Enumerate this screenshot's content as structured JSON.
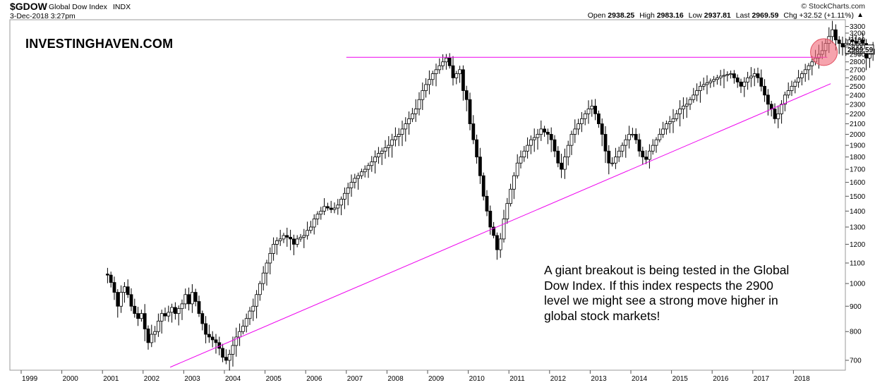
{
  "header": {
    "ticker": "$GDOW",
    "index_name": "Global Dow Index",
    "exchange": "INDX",
    "copyright": "© StockCharts.com",
    "date": "3-Dec-2018 3:27pm",
    "open_label": "Open",
    "open": "2938.25",
    "high_label": "High",
    "high": "2983.16",
    "low_label": "Low",
    "low": "2937.81",
    "last_label": "Last",
    "last": "2969.59",
    "chg_label": "Chg",
    "chg": "+32.52 (+1.11%)",
    "arrow_icon": "up-arrow-icon"
  },
  "watermark": "INVESTINGHAVEN.COM",
  "annotation": "A giant breakout is being tested in the Global Dow Index. If this index respects the 2900 level we might see a strong move higher in global stock markets!",
  "chart_data": {
    "type": "candlestick",
    "title": "Global Dow Index",
    "frequency": "monthly",
    "y_scale": "log",
    "ylim": [
      660,
      3400
    ],
    "xlim": [
      "1999",
      "2018"
    ],
    "x_tick_labels": [
      "1999",
      "2000",
      "2001",
      "2002",
      "2003",
      "2004",
      "2005",
      "2006",
      "2007",
      "2008",
      "2009",
      "2010",
      "2011",
      "2012",
      "2013",
      "2014",
      "2015",
      "2016",
      "2017",
      "2018"
    ],
    "y_tick_labels": [
      700,
      800,
      900,
      1000,
      1100,
      1200,
      1300,
      1400,
      1500,
      1600,
      1700,
      1800,
      1900,
      2000,
      2100,
      2200,
      2300,
      2400,
      2500,
      2600,
      2700,
      2800,
      2900,
      3000,
      3100,
      3200,
      3300
    ],
    "last_price_label": "2969.59",
    "grid": false,
    "colors": {
      "up": "#ffffff",
      "down": "#000000",
      "trendlines": "#ee00ee",
      "highlight": "#f06b7b"
    },
    "horizontal_line": {
      "y": 2860,
      "from": "2007",
      "to": "2018-11"
    },
    "trend_line": {
      "from": {
        "x": "2002-09",
        "y": 678
      },
      "to": {
        "x": "2018-12",
        "y": 2530
      }
    },
    "highlight_circle": {
      "x": "2018-10",
      "y": 2930
    },
    "monthly_closes": [
      1045,
      1040,
      1005,
      960,
      900,
      960,
      985,
      950,
      900,
      870,
      850,
      870,
      810,
      760,
      790,
      800,
      840,
      870,
      860,
      875,
      895,
      870,
      890,
      910,
      950,
      910,
      960,
      920,
      870,
      830,
      790,
      780,
      770,
      760,
      740,
      710,
      700,
      720,
      750,
      780,
      800,
      820,
      850,
      880,
      900,
      950,
      1000,
      1050,
      1100,
      1150,
      1200,
      1220,
      1230,
      1250,
      1240,
      1230,
      1200,
      1230,
      1240,
      1250,
      1280,
      1300,
      1350,
      1380,
      1400,
      1430,
      1420,
      1410,
      1420,
      1440,
      1480,
      1520,
      1560,
      1600,
      1630,
      1650,
      1680,
      1700,
      1730,
      1760,
      1800,
      1830,
      1850,
      1880,
      1900,
      1950,
      1980,
      2000,
      2050,
      2100,
      2150,
      2200,
      2250,
      2350,
      2450,
      2520,
      2580,
      2650,
      2700,
      2750,
      2800,
      2850,
      2750,
      2600,
      2650,
      2700,
      2450,
      2350,
      2100,
      1950,
      1800,
      1650,
      1500,
      1400,
      1300,
      1250,
      1170,
      1230,
      1350,
      1450,
      1550,
      1650,
      1750,
      1800,
      1850,
      1900,
      1950,
      1970,
      2000,
      2050,
      2020,
      2000,
      1950,
      1850,
      1750,
      1700,
      1800,
      1900,
      2000,
      2050,
      2100,
      2150,
      2200,
      2250,
      2280,
      2200,
      2100,
      2000,
      1850,
      1750,
      1750,
      1800,
      1850,
      1900,
      1950,
      2000,
      2000,
      1950,
      1850,
      1800,
      1780,
      1850,
      1900,
      1950,
      2000,
      2050,
      2100,
      2120,
      2150,
      2200,
      2250,
      2280,
      2300,
      2350,
      2400,
      2450,
      2500,
      2520,
      2540,
      2560,
      2580,
      2600,
      2620,
      2630,
      2640,
      2650,
      2600,
      2550,
      2500,
      2550,
      2600,
      2620,
      2650,
      2600,
      2500,
      2400,
      2300,
      2250,
      2150,
      2200,
      2300,
      2400,
      2450,
      2500,
      2550,
      2600,
      2650,
      2700,
      2750,
      2800,
      2850,
      2900,
      2950,
      3050,
      3150,
      3250,
      3100,
      3050,
      3000,
      3050,
      3100,
      3080,
      3050,
      3100,
      3050,
      2850,
      2900,
      2970
    ]
  }
}
